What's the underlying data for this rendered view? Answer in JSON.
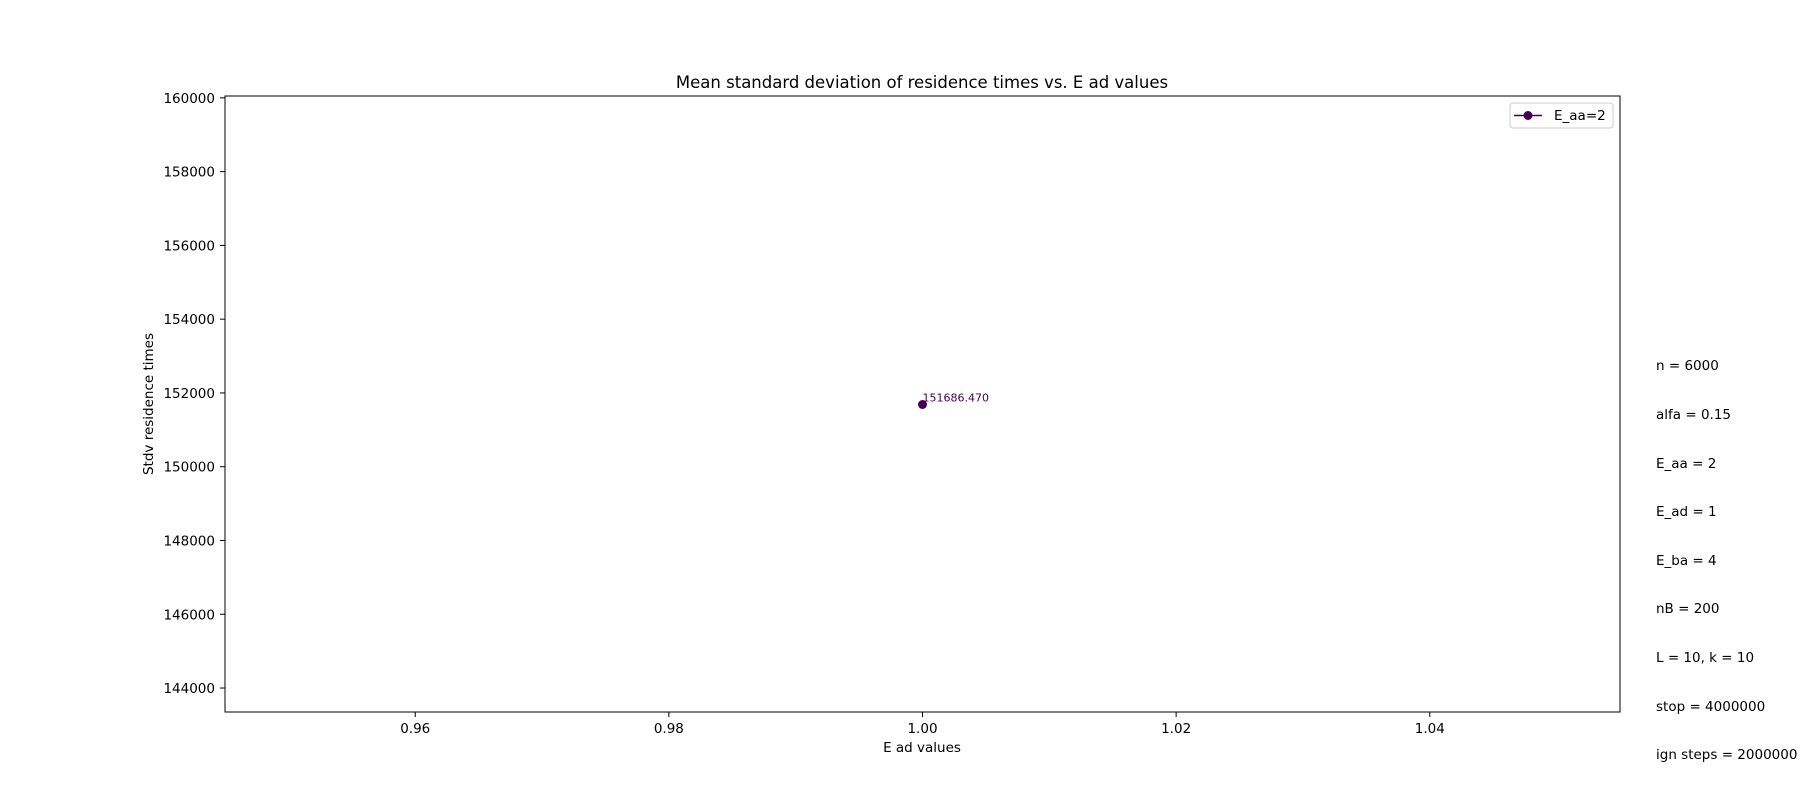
{
  "chart_data": {
    "type": "line",
    "title": "Mean standard deviation of residence times vs. E ad values",
    "xlabel": "E ad values",
    "ylabel": "Stdv residence times",
    "xlim": [
      0.945,
      1.055
    ],
    "ylim": [
      143350,
      160050
    ],
    "xticks": [
      0.96,
      0.98,
      1.0,
      1.02,
      1.04
    ],
    "xtick_labels": [
      "0.96",
      "0.98",
      "1.00",
      "1.02",
      "1.04"
    ],
    "yticks": [
      144000,
      146000,
      148000,
      150000,
      152000,
      154000,
      156000,
      158000,
      160000
    ],
    "ytick_labels": [
      "144000",
      "146000",
      "148000",
      "150000",
      "152000",
      "154000",
      "156000",
      "158000",
      "160000"
    ],
    "grid": false,
    "legend_position": "top-right",
    "series": [
      {
        "name": "E_aa=2",
        "color": "#440154",
        "marker": "circle",
        "x": [
          1.0
        ],
        "y": [
          151686.47
        ],
        "point_labels": [
          "151686.470"
        ]
      }
    ]
  },
  "parameters": [
    "n = 6000",
    "alfa = 0.15",
    "E_aa = 2",
    "E_ad = 1",
    "E_ba = 4",
    "nB = 200",
    "L = 10, k = 10",
    "stop = 4000000",
    "ign steps = 2000000"
  ]
}
